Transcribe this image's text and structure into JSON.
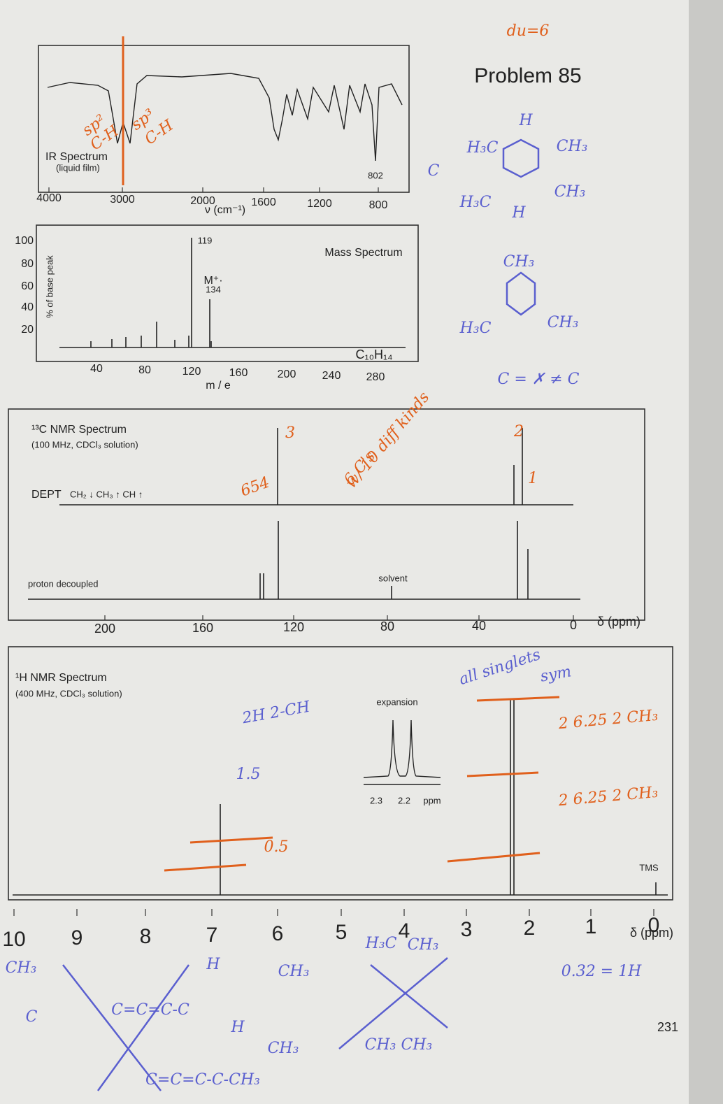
{
  "header": {
    "annotation": "du=6",
    "title": "Problem 85",
    "page_number": "231"
  },
  "ir": {
    "title": "IR Spectrum",
    "subtitle": "(liquid film)",
    "peak_label": "802",
    "x_ticks": [
      4000,
      3000,
      2000,
      1600,
      1200,
      800
    ],
    "x_axis_label": "ν (cm⁻¹)",
    "annotations": [
      "sp²",
      "C-H",
      "sp³",
      "C-H"
    ]
  },
  "structure_1": {
    "labels": [
      "C",
      "H",
      "H₃C",
      "CH₃",
      "H₃C",
      "CH₃",
      "H"
    ]
  },
  "mass": {
    "title": "Mass Spectrum",
    "y_axis_label": "% of base peak",
    "y_ticks": [
      100,
      80,
      60,
      40,
      20
    ],
    "x_ticks": [
      40,
      80,
      120,
      160,
      200,
      240,
      280
    ],
    "x_axis_label": "m / e",
    "base_peak": "119",
    "molecular_ion": "M⁺·",
    "molecular_ion_mass": "134",
    "formula": "C₁₀H₁₄"
  },
  "structure_2": {
    "labels": [
      "CH₃",
      "H₃C",
      "CH₃",
      "C = ✗ ≠ C"
    ]
  },
  "c13": {
    "title": "¹³C NMR Spectrum",
    "subtitle": "(100 MHz, CDCl₃ solution)",
    "dept": "DEPT",
    "dept_legend": "CH₂ ↓ CH₃ ↑ CH ↑",
    "decoupled": "proton decoupled",
    "solvent": "solvent",
    "x_ticks": [
      200,
      160,
      120,
      80,
      40,
      0
    ],
    "x_axis_label": "δ (ppm)",
    "annotations": [
      "3",
      "654",
      "6 C's",
      "w/ 10 diff kinds",
      "2",
      "1"
    ]
  },
  "h1": {
    "title": "¹H NMR Spectrum",
    "subtitle": "(400 MHz, CDCl₃ solution)",
    "expansion": "expansion",
    "expansion_ticks": [
      "2.3",
      "2.2",
      "ppm"
    ],
    "tms": "TMS",
    "x_ticks": [
      10,
      9,
      8,
      7,
      6,
      5,
      4,
      3,
      2,
      1,
      0
    ],
    "x_axis_label": "δ (ppm)",
    "annotations": [
      "all singlets",
      "sym",
      "2H 2-CH",
      "1.5",
      "0.5",
      "2  6.25  2 CH₃",
      "2  6.25  2 CH₃",
      "0.32 = 1H"
    ]
  },
  "sketch": {
    "labels": [
      "CH₃",
      "C",
      "C=C=C-C",
      "H",
      "CH₃",
      "H",
      "CH₃",
      "H₃C",
      "CH₃",
      "CH₃  CH₃",
      "C=C=C-C-CH₃"
    ]
  }
}
